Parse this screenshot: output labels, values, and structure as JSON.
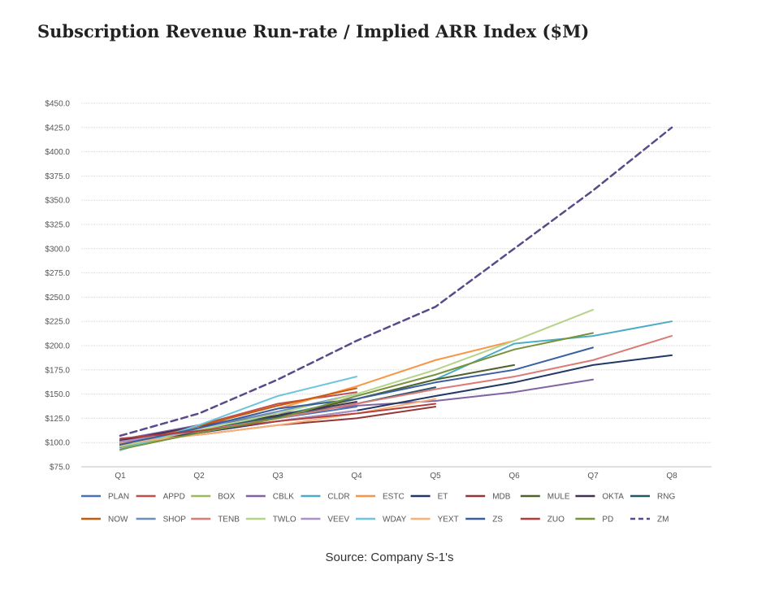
{
  "title": "Subscription Revenue Run-rate / Implied ARR Index ($M)",
  "source": "Source: Company S-1's",
  "chart_data": {
    "type": "line",
    "categories": [
      "Q1",
      "Q2",
      "Q3",
      "Q4",
      "Q5",
      "Q6",
      "Q7",
      "Q8"
    ],
    "y_tick_labels": [
      "$75.0",
      "$100.0",
      "$125.0",
      "$150.0",
      "$175.0",
      "$200.0",
      "$225.0",
      "$250.0",
      "$275.0",
      "$300.0",
      "$325.0",
      "$350.0",
      "$375.0",
      "$400.0",
      "$425.0",
      "$450.0"
    ],
    "ylim": [
      75,
      450
    ],
    "grid": true,
    "legend_position": "bottom",
    "series": [
      {
        "name": "PLAN",
        "color": "#4a72b8",
        "values": [
          100,
          112,
          125,
          137,
          null,
          null,
          null,
          null
        ]
      },
      {
        "name": "APPD",
        "color": "#c0504d",
        "values": [
          100,
          118,
          140,
          152,
          null,
          null,
          null,
          null
        ]
      },
      {
        "name": "BOX",
        "color": "#9bbb59",
        "values": [
          95,
          110,
          125,
          140,
          null,
          null,
          null,
          null
        ]
      },
      {
        "name": "CBLK",
        "color": "#8064a2",
        "values": [
          103,
          118,
          130,
          138,
          143,
          152,
          165,
          null
        ]
      },
      {
        "name": "CLDR",
        "color": "#4bacc6",
        "values": [
          96,
          113,
          128,
          145,
          165,
          202,
          210,
          225
        ]
      },
      {
        "name": "ESTC",
        "color": "#f79646",
        "values": [
          97,
          115,
          135,
          158,
          185,
          205,
          null,
          null
        ]
      },
      {
        "name": "ET",
        "color": "#1f3864",
        "values": [
          100,
          110,
          122,
          133,
          148,
          162,
          180,
          190
        ]
      },
      {
        "name": "MDB",
        "color": "#943634",
        "values": [
          101,
          108,
          118,
          125,
          137,
          null,
          null,
          null
        ]
      },
      {
        "name": "MULE",
        "color": "#4f6228",
        "values": [
          98,
          112,
          127,
          145,
          165,
          180,
          null,
          null
        ]
      },
      {
        "name": "OKTA",
        "color": "#3f3151",
        "values": [
          102,
          117,
          128,
          142,
          null,
          null,
          null,
          null
        ]
      },
      {
        "name": "RNG",
        "color": "#215868",
        "values": [
          99,
          113,
          126,
          140,
          157,
          null,
          null,
          null
        ]
      },
      {
        "name": "NOW",
        "color": "#c55a11",
        "values": [
          97,
          117,
          138,
          156,
          null,
          null,
          null,
          null
        ]
      },
      {
        "name": "SHOP",
        "color": "#6c8ebf",
        "values": [
          95,
          115,
          132,
          150,
          null,
          null,
          null,
          null
        ]
      },
      {
        "name": "TENB",
        "color": "#da7b77",
        "values": [
          100,
          112,
          125,
          140,
          155,
          168,
          185,
          210
        ]
      },
      {
        "name": "TWLO",
        "color": "#b5d38a",
        "values": [
          96,
          113,
          130,
          150,
          175,
          205,
          237,
          null
        ]
      },
      {
        "name": "VEEV",
        "color": "#a992c6",
        "values": [
          101,
          112,
          122,
          133,
          null,
          null,
          null,
          null
        ]
      },
      {
        "name": "WDAY",
        "color": "#6cc5dc",
        "values": [
          92,
          118,
          148,
          168,
          null,
          null,
          null,
          null
        ]
      },
      {
        "name": "YEXT",
        "color": "#f9b178",
        "values": [
          99,
          108,
          118,
          130,
          145,
          null,
          null,
          null
        ]
      },
      {
        "name": "ZS",
        "color": "#3a5fa0",
        "values": [
          98,
          115,
          135,
          145,
          162,
          175,
          198,
          null
        ]
      },
      {
        "name": "ZUO",
        "color": "#b43c3c",
        "values": [
          104,
          112,
          122,
          130,
          140,
          null,
          null,
          null
        ]
      },
      {
        "name": "PD",
        "color": "#77933c",
        "values": [
          93,
          110,
          125,
          148,
          170,
          196,
          213,
          null
        ]
      },
      {
        "name": "ZM",
        "color": "#5b4a8a",
        "dashed": true,
        "values": [
          107,
          130,
          165,
          205,
          240,
          300,
          360,
          425
        ]
      }
    ]
  }
}
